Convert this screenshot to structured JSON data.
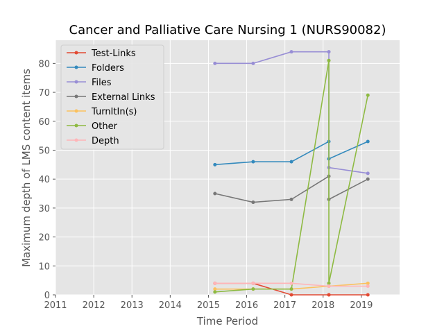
{
  "chart_data": {
    "type": "line",
    "title": "Cancer and Palliative Care Nursing 1 (NURS90082)",
    "xlabel": "Time Period",
    "ylabel": "Maximum depth of LMS content items",
    "xlim": [
      2011,
      2020
    ],
    "ylim": [
      0,
      88
    ],
    "xticks": [
      "2011",
      "2012",
      "2013",
      "2014",
      "2015",
      "2016",
      "2017",
      "2018",
      "2019"
    ],
    "yticks": [
      "0",
      "10",
      "20",
      "30",
      "40",
      "50",
      "60",
      "70",
      "80"
    ],
    "grid": true,
    "legend_position": "upper-left",
    "series": [
      {
        "name": "Test-Links",
        "color": "#E24A33",
        "x": [
          2015.17,
          2016.17,
          2017.17,
          2018.15,
          2018.15,
          2019.17
        ],
        "y": [
          4,
          4,
          0,
          0,
          0,
          0
        ]
      },
      {
        "name": "Folders",
        "color": "#348ABD",
        "x": [
          2015.17,
          2016.17,
          2017.17,
          2018.15,
          2018.15,
          2019.17
        ],
        "y": [
          45,
          46,
          46,
          53,
          47,
          53
        ]
      },
      {
        "name": "Files",
        "color": "#988ED5",
        "x": [
          2015.17,
          2016.17,
          2017.17,
          2018.15,
          2018.15,
          2019.17
        ],
        "y": [
          80,
          80,
          84,
          84,
          44,
          42
        ]
      },
      {
        "name": "External Links",
        "color": "#777777",
        "x": [
          2015.17,
          2016.17,
          2017.17,
          2018.15,
          2018.15,
          2019.17
        ],
        "y": [
          35,
          32,
          33,
          41,
          33,
          40
        ]
      },
      {
        "name": "TurnItIn(s)",
        "color": "#FBC15E",
        "x": [
          2015.17,
          2016.17,
          2017.17,
          2018.15,
          2018.15,
          2019.17
        ],
        "y": [
          2,
          2,
          2,
          3,
          3,
          4
        ]
      },
      {
        "name": "Other",
        "color": "#8EBA42",
        "x": [
          2015.17,
          2016.17,
          2017.17,
          2018.15,
          2018.15,
          2019.17
        ],
        "y": [
          1,
          2,
          2,
          81,
          4,
          69
        ]
      },
      {
        "name": "Depth",
        "color": "#FFB5B8",
        "x": [
          2015.17,
          2016.17,
          2017.17,
          2018.15,
          2018.15,
          2019.17
        ],
        "y": [
          4,
          4,
          4,
          3,
          3,
          3
        ]
      }
    ]
  }
}
